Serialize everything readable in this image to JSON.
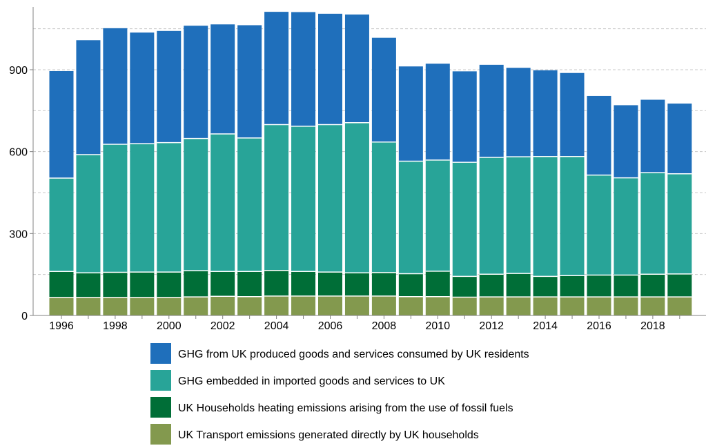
{
  "chart_data": {
    "type": "bar",
    "stacked": true,
    "title": "",
    "xlabel": "",
    "ylabel": "",
    "ylim": [
      0,
      1130
    ],
    "y_ticks": [
      0,
      300,
      600,
      900
    ],
    "grid": "horizontal dashed",
    "legend_position": "bottom",
    "x_tick_labels": [
      "1996",
      "1998",
      "2000",
      "2002",
      "2004",
      "2006",
      "2008",
      "2010",
      "2012",
      "2014",
      "2016",
      "2018"
    ],
    "categories": [
      "1996",
      "1997",
      "1998",
      "1999",
      "2000",
      "2001",
      "2002",
      "2003",
      "2004",
      "2005",
      "2006",
      "2007",
      "2008",
      "2009",
      "2010",
      "2011",
      "2012",
      "2013",
      "2014",
      "2015",
      "2016",
      "2017",
      "2018",
      "2019"
    ],
    "series": [
      {
        "name": "UK Transport emissions generated directly by UK households",
        "color": "#83994e",
        "values": [
          66,
          66,
          66,
          66,
          66,
          68,
          70,
          69,
          71,
          71,
          71,
          71,
          71,
          69,
          69,
          67,
          68,
          68,
          68,
          68,
          68,
          68,
          68,
          68
        ]
      },
      {
        "name": "UK Households heating emissions arising from the use of fossil fuels",
        "color": "#006e37",
        "values": [
          95,
          90,
          92,
          93,
          93,
          96,
          91,
          92,
          94,
          90,
          88,
          85,
          86,
          84,
          93,
          76,
          83,
          86,
          75,
          78,
          80,
          80,
          83,
          84
        ]
      },
      {
        "name": "GHG embedded in imported goods and services to UK",
        "color": "#28a498",
        "values": [
          342,
          433,
          469,
          470,
          474,
          484,
          504,
          489,
          534,
          532,
          540,
          550,
          478,
          412,
          407,
          418,
          428,
          427,
          439,
          436,
          366,
          356,
          372,
          367
        ]
      },
      {
        "name": "GHG from UK produced goods and services consumed by UK residents",
        "color": "#1f6fbb",
        "values": [
          392,
          419,
          425,
          407,
          409,
          413,
          401,
          413,
          413,
          418,
          406,
          396,
          382,
          347,
          353,
          333,
          339,
          326,
          316,
          306,
          290,
          266,
          267,
          257
        ]
      }
    ],
    "legend_order": [
      3,
      2,
      1,
      0
    ]
  }
}
